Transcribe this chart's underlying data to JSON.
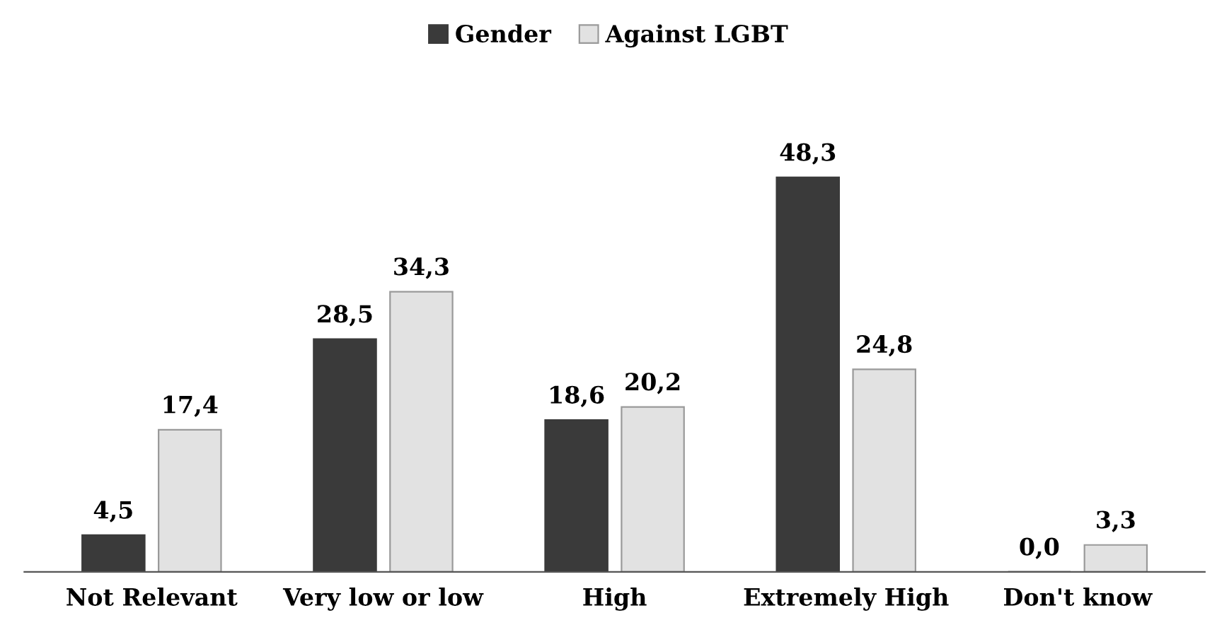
{
  "chart_data": {
    "type": "bar",
    "categories": [
      "Not Relevant",
      "Very low or low",
      "High",
      "Extremely High",
      "Don't know"
    ],
    "series": [
      {
        "name": "Gender",
        "color": "#3a3a3a",
        "values": [
          4.5,
          28.5,
          18.6,
          48.3,
          0.0
        ],
        "value_labels": [
          "4,5",
          "28,5",
          "18,6",
          "48,3",
          "0,0"
        ]
      },
      {
        "name": "Against LGBT",
        "color": "#e2e2e2",
        "values": [
          17.4,
          34.3,
          20.2,
          24.8,
          3.3
        ],
        "value_labels": [
          "17,4",
          "34,3",
          "20,2",
          "24,8",
          "3,3"
        ]
      }
    ],
    "legend": "top",
    "grid": false
  }
}
